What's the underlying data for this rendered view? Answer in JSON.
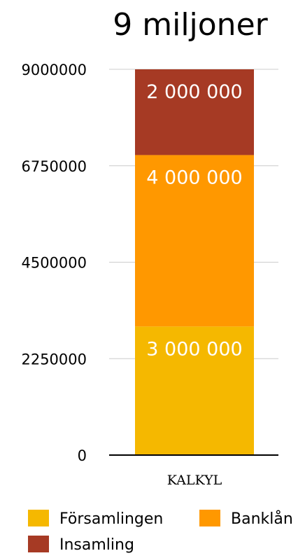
{
  "chart_data": {
    "type": "bar",
    "stacked": true,
    "title": "9 miljoner",
    "categories": [
      "KALKYL"
    ],
    "series": [
      {
        "name": "Församlingen",
        "values": [
          3000000
        ],
        "color": "#f5b800",
        "data_label": "3 000 000"
      },
      {
        "name": "Banklån",
        "values": [
          4000000
        ],
        "color": "#ff9800",
        "data_label": "4 000 000"
      },
      {
        "name": "Insamling",
        "values": [
          2000000
        ],
        "color": "#a63a24",
        "data_label": "2 000 000"
      }
    ],
    "yticks": [
      "0",
      "2250000",
      "4500000",
      "6750000",
      "9000000"
    ],
    "ylim": [
      0,
      9000000
    ],
    "grid": true,
    "legend_position": "bottom"
  }
}
